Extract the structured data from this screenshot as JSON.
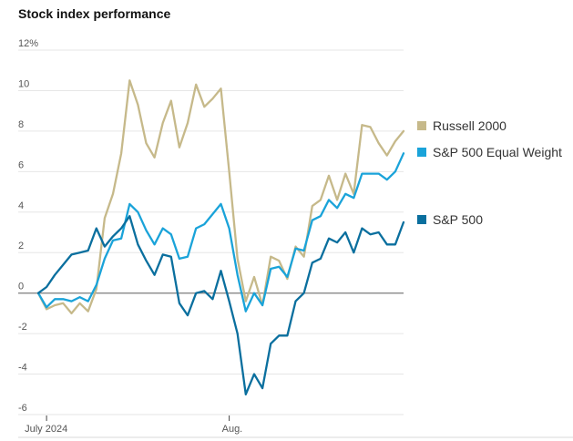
{
  "chart_data": {
    "type": "line",
    "title": "Stock index performance",
    "xlabel": "",
    "ylabel": "",
    "ylim": [
      -6,
      12
    ],
    "y_ticks": [
      12,
      10,
      8,
      6,
      4,
      2,
      0,
      -2,
      -4,
      -6
    ],
    "y_tick_labels": [
      "12%",
      "10",
      "8",
      "6",
      "4",
      "2",
      "0",
      "-2",
      "-4",
      "-6"
    ],
    "x_ticks": [
      {
        "label": "July 2024",
        "index": 1
      },
      {
        "label": "Aug.",
        "index": 23
      }
    ],
    "grid": true,
    "legend_placement": "right",
    "series": [
      {
        "name": "Russell 2000",
        "color": "#c6b98a",
        "values": [
          0,
          -0.8,
          -0.6,
          -0.5,
          -1.0,
          -0.5,
          -0.9,
          0.2,
          3.7,
          4.9,
          6.9,
          10.5,
          9.3,
          7.4,
          6.7,
          8.4,
          9.5,
          7.2,
          8.4,
          10.3,
          9.2,
          9.6,
          10.1,
          6.0,
          1.7,
          -0.4,
          0.8,
          -0.6,
          1.8,
          1.6,
          0.7,
          2.3,
          1.8,
          4.3,
          4.6,
          5.8,
          4.6,
          5.9,
          4.9,
          8.3,
          8.2,
          7.4,
          6.8,
          7.5,
          8.0
        ]
      },
      {
        "name": "S&P 500 Equal Weight",
        "color": "#1aa3d9",
        "values": [
          0,
          -0.7,
          -0.3,
          -0.3,
          -0.4,
          -0.2,
          -0.4,
          0.4,
          1.7,
          2.6,
          2.7,
          4.4,
          4.0,
          3.1,
          2.4,
          3.2,
          2.9,
          1.7,
          1.8,
          3.2,
          3.4,
          3.9,
          4.4,
          3.2,
          0.9,
          -0.9,
          0.0,
          -0.6,
          1.2,
          1.3,
          0.8,
          2.2,
          2.1,
          3.6,
          3.8,
          4.6,
          4.2,
          4.9,
          4.7,
          5.9,
          5.9,
          5.9,
          5.6,
          6.0,
          6.9
        ]
      },
      {
        "name": "S&P 500",
        "color": "#0a6f9e",
        "values": [
          0,
          0.3,
          0.9,
          1.4,
          1.9,
          2.0,
          2.1,
          3.2,
          2.3,
          2.8,
          3.2,
          3.8,
          2.4,
          1.6,
          0.9,
          1.9,
          1.8,
          -0.5,
          -1.1,
          0.0,
          0.1,
          -0.3,
          1.1,
          -0.4,
          -2.0,
          -5.0,
          -4.0,
          -4.7,
          -2.5,
          -2.1,
          -2.1,
          -0.4,
          0.0,
          1.5,
          1.7,
          2.7,
          2.5,
          3.0,
          2.0,
          3.2,
          2.9,
          3.0,
          2.4,
          2.4,
          3.5
        ]
      }
    ]
  }
}
